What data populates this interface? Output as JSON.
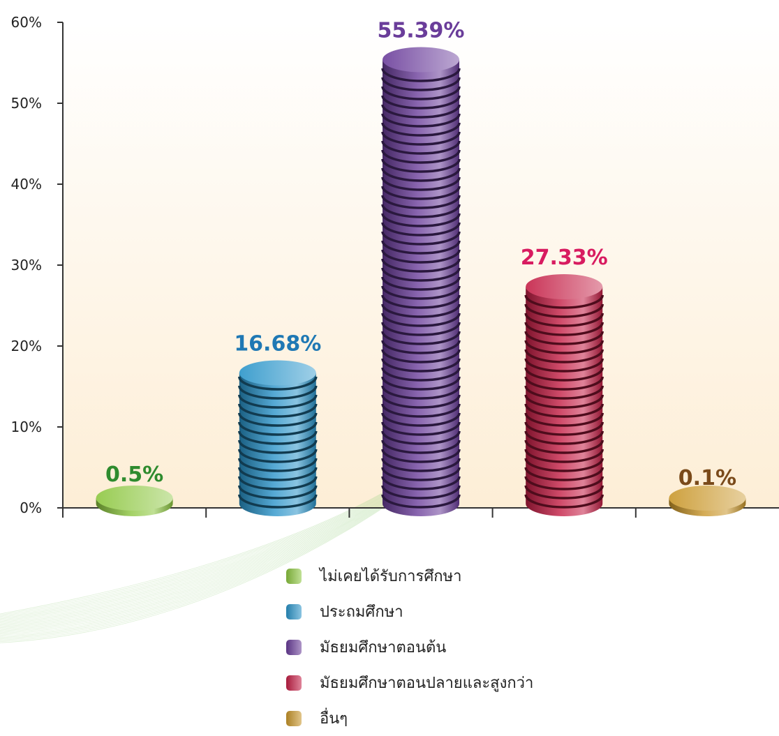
{
  "chart_data": {
    "type": "bar",
    "categories": [
      "ไม่เคยได้รับการศึกษา",
      "ประถมศึกษา",
      "มัธยมศึกษาตอนต้น",
      "มัธยมศึกษาตอนปลายและสูงกว่า",
      "อื่นๆ"
    ],
    "values": [
      0.5,
      16.68,
      55.39,
      27.33,
      0.1
    ],
    "value_labels": [
      "0.5%",
      "16.68%",
      "55.39%",
      "27.33%",
      "0.1%"
    ],
    "ylim": [
      0,
      60
    ],
    "yticks": [
      0,
      10,
      20,
      30,
      40,
      50,
      60
    ],
    "ytick_labels": [
      "0%",
      "10%",
      "20%",
      "30%",
      "40%",
      "50%",
      "60%"
    ],
    "colors": [
      "#8cc63f",
      "#2a94c9",
      "#6a3d9a",
      "#c41e45",
      "#c9962a"
    ],
    "label_colors": [
      "#2e8b2e",
      "#1f78b4",
      "#6a3d9a",
      "#d81b60",
      "#7a4a1a"
    ],
    "legend_position": "bottom-center",
    "grid": false
  },
  "legend": {
    "items": [
      {
        "label": "ไม่เคยได้รับการศึกษา",
        "color": "#8cc63f"
      },
      {
        "label": "ประถมศึกษา",
        "color": "#2a94c9"
      },
      {
        "label": "มัธยมศึกษาตอนต้น",
        "color": "#6a3d9a"
      },
      {
        "label": "มัธยมศึกษาตอนปลายและสูงกว่า",
        "color": "#c41e45"
      },
      {
        "label": "อื่นๆ",
        "color": "#c9962a"
      }
    ]
  }
}
